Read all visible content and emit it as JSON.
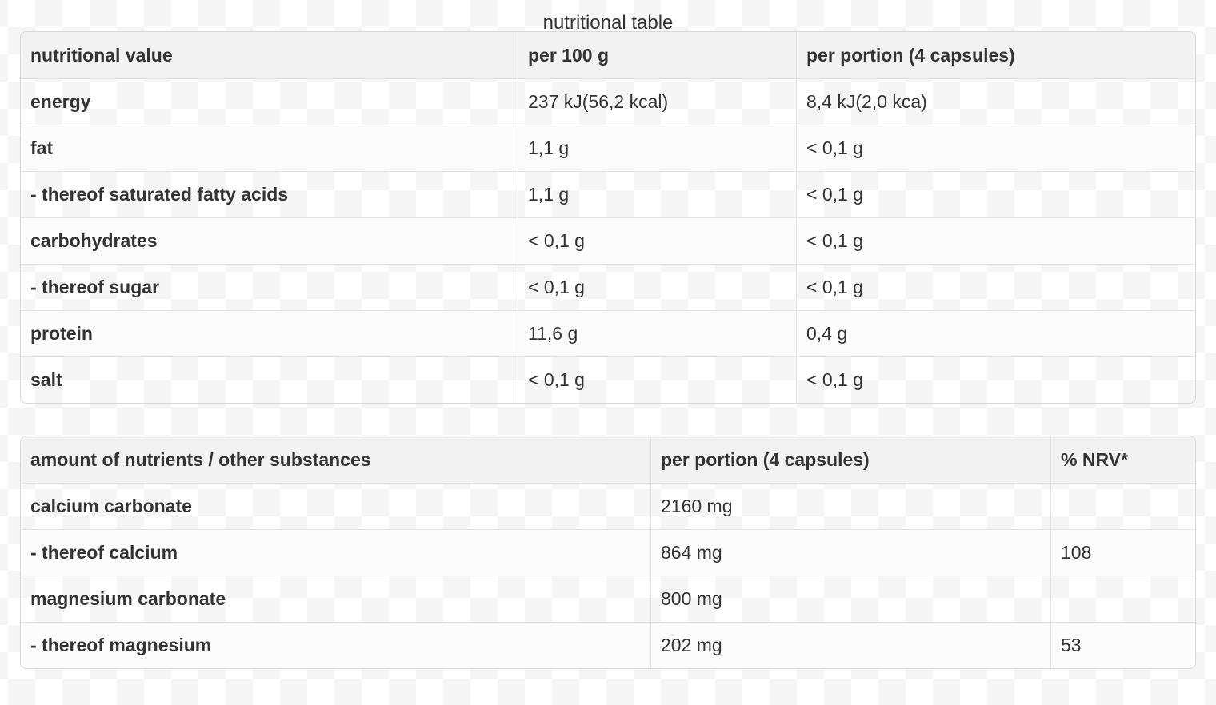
{
  "page": {
    "title": "nutritional table"
  },
  "colors": {
    "text": "#333333",
    "header_background": "#f2f2f2",
    "row_even_background": "#fcfcfc",
    "border": "#d8d8d8",
    "checker_light": "#ffffff",
    "checker_dark": "#f5f5f5"
  },
  "nutrition_table": {
    "columns": [
      "nutritional value",
      "per 100 g",
      "per portion (4 capsules)"
    ],
    "rows": [
      {
        "label": "energy",
        "per100": "237 kJ(56,2 kcal)",
        "portion": "8,4 kJ(2,0 kca)"
      },
      {
        "label": "fat",
        "per100": "1,1 g",
        "portion": "< 0,1 g"
      },
      {
        "label": "- thereof saturated fatty acids",
        "per100": "1,1 g",
        "portion": "< 0,1 g"
      },
      {
        "label": "carbohydrates",
        "per100": "< 0,1 g",
        "portion": "< 0,1 g"
      },
      {
        "label": "- thereof sugar",
        "per100": "< 0,1 g",
        "portion": "< 0,1 g"
      },
      {
        "label": "protein",
        "per100": "11,6 g",
        "portion": "0,4 g"
      },
      {
        "label": "salt",
        "per100": "< 0,1 g",
        "portion": "< 0,1 g"
      }
    ]
  },
  "nutrients_table": {
    "columns": [
      "amount of nutrients / other substances",
      "per portion (4 capsules)",
      "% NRV*"
    ],
    "rows": [
      {
        "label": "calcium carbonate",
        "portion": "2160 mg",
        "nrv": ""
      },
      {
        "label": "- thereof calcium",
        "portion": "864 mg",
        "nrv": "108"
      },
      {
        "label": "magnesium carbonate",
        "portion": "800 mg",
        "nrv": ""
      },
      {
        "label": "- thereof magnesium",
        "portion": "202 mg",
        "nrv": "53"
      }
    ]
  }
}
